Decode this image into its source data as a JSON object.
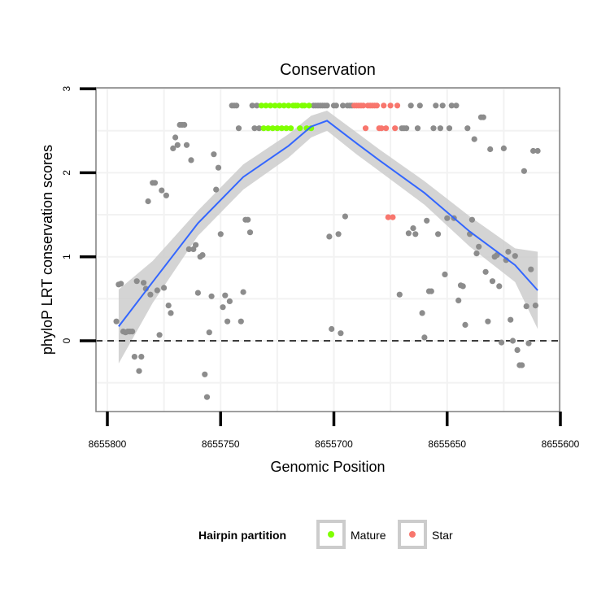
{
  "chart_data": {
    "type": "scatter",
    "title": "Conservation",
    "xlabel": "Genomic Position",
    "ylabel": "phyloP LRT conservation scores",
    "x_reversed": true,
    "xlim": [
      8655600,
      8655800
    ],
    "ylim": [
      -0.82,
      3.02
    ],
    "x_ticks": [
      8655800,
      8655750,
      8655700,
      8655650,
      8655600
    ],
    "x_tick_labels": [
      "8655800",
      "8655750",
      "8655700",
      "8655650",
      "8655600"
    ],
    "y_ticks": [
      0,
      1,
      2,
      3
    ],
    "y_tick_labels": [
      "0",
      "1",
      "2",
      "3"
    ],
    "reference_line": {
      "y": 0,
      "style": "dashed"
    },
    "legend": {
      "title": "Hairpin partition",
      "position": "bottom",
      "entries": [
        {
          "label": "Mature",
          "color": "#7fff00"
        },
        {
          "label": "Star",
          "color": "#f8766d"
        }
      ]
    },
    "colors": {
      "other": "#8c8c8c",
      "mature": "#7fff00",
      "star": "#f8766d",
      "smooth": "#3366ff",
      "ribbon": "#cccccc",
      "panel_grid": "#f2f2f2",
      "border": "#7f7f7f"
    },
    "series": [
      {
        "name": "Other",
        "color": "#8c8c8c",
        "points": [
          [
            8655796,
            0.23
          ],
          [
            8655795,
            0.67
          ],
          [
            8655794,
            0.68
          ],
          [
            8655793,
            0.11
          ],
          [
            8655792,
            0.1
          ],
          [
            8655791,
            0.11
          ],
          [
            8655790,
            0.11
          ],
          [
            8655789,
            0.11
          ],
          [
            8655788,
            -0.19
          ],
          [
            8655787,
            0.71
          ],
          [
            8655786,
            -0.36
          ],
          [
            8655785,
            -0.19
          ],
          [
            8655784,
            0.69
          ],
          [
            8655783,
            0.62
          ],
          [
            8655782,
            1.66
          ],
          [
            8655781,
            0.55
          ],
          [
            8655780,
            1.88
          ],
          [
            8655779,
            1.88
          ],
          [
            8655778,
            0.6
          ],
          [
            8655777,
            0.07
          ],
          [
            8655776,
            1.79
          ],
          [
            8655775,
            0.63
          ],
          [
            8655774,
            1.73
          ],
          [
            8655773,
            0.42
          ],
          [
            8655772,
            0.33
          ],
          [
            8655771,
            2.29
          ],
          [
            8655770,
            2.42
          ],
          [
            8655769,
            2.33
          ],
          [
            8655768,
            2.57
          ],
          [
            8655767,
            2.57
          ],
          [
            8655766,
            2.57
          ],
          [
            8655765,
            2.33
          ],
          [
            8655764,
            1.09
          ],
          [
            8655763,
            2.15
          ],
          [
            8655762,
            1.09
          ],
          [
            8655761,
            1.14
          ],
          [
            8655760,
            0.57
          ],
          [
            8655759,
            1.0
          ],
          [
            8655758,
            1.02
          ],
          [
            8655757,
            -0.4
          ],
          [
            8655756,
            -0.67
          ],
          [
            8655755,
            0.1
          ],
          [
            8655754,
            0.53
          ],
          [
            8655753,
            2.22
          ],
          [
            8655752,
            1.8
          ],
          [
            8655751,
            2.06
          ],
          [
            8655750,
            1.27
          ],
          [
            8655749,
            0.4
          ],
          [
            8655748,
            0.54
          ],
          [
            8655747,
            0.23
          ],
          [
            8655746,
            0.47
          ],
          [
            8655745,
            2.8
          ],
          [
            8655744,
            2.8
          ],
          [
            8655743,
            2.8
          ],
          [
            8655742,
            2.53
          ],
          [
            8655741,
            0.23
          ],
          [
            8655740,
            0.58
          ],
          [
            8655739,
            1.44
          ],
          [
            8655738,
            1.44
          ],
          [
            8655737,
            1.29
          ],
          [
            8655736,
            2.8
          ],
          [
            8655735,
            2.53
          ],
          [
            8655734,
            2.8
          ],
          [
            8655733,
            2.53
          ],
          [
            8655709,
            2.8
          ],
          [
            8655708,
            2.8
          ],
          [
            8655707,
            2.8
          ],
          [
            8655706,
            2.8
          ],
          [
            8655705,
            2.8
          ],
          [
            8655704,
            2.8
          ],
          [
            8655703,
            2.8
          ],
          [
            8655702,
            1.24
          ],
          [
            8655701,
            0.14
          ],
          [
            8655700,
            2.8
          ],
          [
            8655699,
            2.8
          ],
          [
            8655698,
            1.27
          ],
          [
            8655697,
            0.09
          ],
          [
            8655696,
            2.8
          ],
          [
            8655695,
            1.48
          ],
          [
            8655694,
            2.8
          ],
          [
            8655693,
            2.8
          ],
          [
            8655692,
            2.8
          ],
          [
            8655671,
            0.55
          ],
          [
            8655670,
            2.53
          ],
          [
            8655669,
            2.53
          ],
          [
            8655668,
            2.53
          ],
          [
            8655667,
            1.28
          ],
          [
            8655666,
            2.8
          ],
          [
            8655665,
            1.34
          ],
          [
            8655664,
            1.27
          ],
          [
            8655663,
            2.53
          ],
          [
            8655662,
            2.8
          ],
          [
            8655661,
            0.33
          ],
          [
            8655660,
            0.04
          ],
          [
            8655659,
            1.43
          ],
          [
            8655658,
            0.59
          ],
          [
            8655657,
            0.59
          ],
          [
            8655656,
            2.53
          ],
          [
            8655655,
            2.8
          ],
          [
            8655654,
            1.27
          ],
          [
            8655653,
            2.53
          ],
          [
            8655652,
            2.8
          ],
          [
            8655651,
            0.79
          ],
          [
            8655650,
            1.46
          ],
          [
            8655649,
            2.53
          ],
          [
            8655648,
            2.8
          ],
          [
            8655647,
            1.46
          ],
          [
            8655646,
            2.8
          ],
          [
            8655645,
            0.48
          ],
          [
            8655644,
            0.66
          ],
          [
            8655643,
            0.65
          ],
          [
            8655642,
            0.19
          ],
          [
            8655641,
            2.53
          ],
          [
            8655640,
            1.27
          ],
          [
            8655639,
            1.44
          ],
          [
            8655638,
            2.4
          ],
          [
            8655637,
            1.04
          ],
          [
            8655636,
            1.12
          ],
          [
            8655635,
            2.66
          ],
          [
            8655634,
            2.66
          ],
          [
            8655633,
            0.82
          ],
          [
            8655632,
            0.23
          ],
          [
            8655631,
            2.28
          ],
          [
            8655630,
            0.71
          ],
          [
            8655629,
            1.0
          ],
          [
            8655628,
            1.02
          ],
          [
            8655627,
            0.65
          ],
          [
            8655626,
            -0.02
          ],
          [
            8655625,
            2.29
          ],
          [
            8655624,
            0.96
          ],
          [
            8655623,
            1.06
          ],
          [
            8655622,
            0.25
          ],
          [
            8655621,
            0.0
          ],
          [
            8655620,
            1.01
          ],
          [
            8655619,
            -0.11
          ],
          [
            8655618,
            -0.29
          ],
          [
            8655617,
            -0.29
          ],
          [
            8655616,
            2.02
          ],
          [
            8655615,
            0.41
          ],
          [
            8655614,
            -0.03
          ],
          [
            8655613,
            0.85
          ],
          [
            8655612,
            2.26
          ],
          [
            8655611,
            0.42
          ],
          [
            8655610,
            2.26
          ]
        ]
      },
      {
        "name": "Mature",
        "color": "#7fff00",
        "points": [
          [
            8655732,
            2.8
          ],
          [
            8655731,
            2.53
          ],
          [
            8655730,
            2.8
          ],
          [
            8655729,
            2.53
          ],
          [
            8655728,
            2.8
          ],
          [
            8655727,
            2.53
          ],
          [
            8655726,
            2.8
          ],
          [
            8655725,
            2.53
          ],
          [
            8655724,
            2.8
          ],
          [
            8655723,
            2.53
          ],
          [
            8655722,
            2.8
          ],
          [
            8655721,
            2.53
          ],
          [
            8655720,
            2.8
          ],
          [
            8655719,
            2.53
          ],
          [
            8655718,
            2.8
          ],
          [
            8655717,
            2.8
          ],
          [
            8655716,
            2.8
          ],
          [
            8655715,
            2.53
          ],
          [
            8655714,
            2.8
          ],
          [
            8655713,
            2.8
          ],
          [
            8655712,
            2.53
          ],
          [
            8655711,
            2.8
          ],
          [
            8655710,
            2.53
          ]
        ]
      },
      {
        "name": "Star",
        "color": "#f8766d",
        "points": [
          [
            8655691,
            2.8
          ],
          [
            8655690,
            2.8
          ],
          [
            8655689,
            2.8
          ],
          [
            8655688,
            2.8
          ],
          [
            8655687,
            2.8
          ],
          [
            8655686,
            2.53
          ],
          [
            8655685,
            2.8
          ],
          [
            8655684,
            2.8
          ],
          [
            8655683,
            2.8
          ],
          [
            8655682,
            2.8
          ],
          [
            8655681,
            2.8
          ],
          [
            8655680,
            2.53
          ],
          [
            8655679,
            2.53
          ],
          [
            8655678,
            2.8
          ],
          [
            8655677,
            2.53
          ],
          [
            8655676,
            1.47
          ],
          [
            8655675,
            2.8
          ],
          [
            8655674,
            1.47
          ],
          [
            8655673,
            2.53
          ],
          [
            8655672,
            2.8
          ]
        ]
      }
    ],
    "smooth": {
      "x": [
        8655795,
        8655780,
        8655760,
        8655740,
        8655720,
        8655710,
        8655703,
        8655690,
        8655680,
        8655660,
        8655640,
        8655620,
        8655610
      ],
      "y": [
        0.17,
        0.7,
        1.4,
        1.95,
        2.32,
        2.55,
        2.62,
        2.35,
        2.15,
        1.76,
        1.3,
        0.9,
        0.6
      ],
      "lower": [
        -0.27,
        0.45,
        1.25,
        1.8,
        2.18,
        2.42,
        2.5,
        2.22,
        2.02,
        1.62,
        1.12,
        0.7,
        0.14
      ],
      "upper": [
        0.61,
        0.95,
        1.55,
        2.1,
        2.46,
        2.68,
        2.74,
        2.48,
        2.28,
        1.9,
        1.48,
        1.1,
        1.06
      ]
    }
  }
}
